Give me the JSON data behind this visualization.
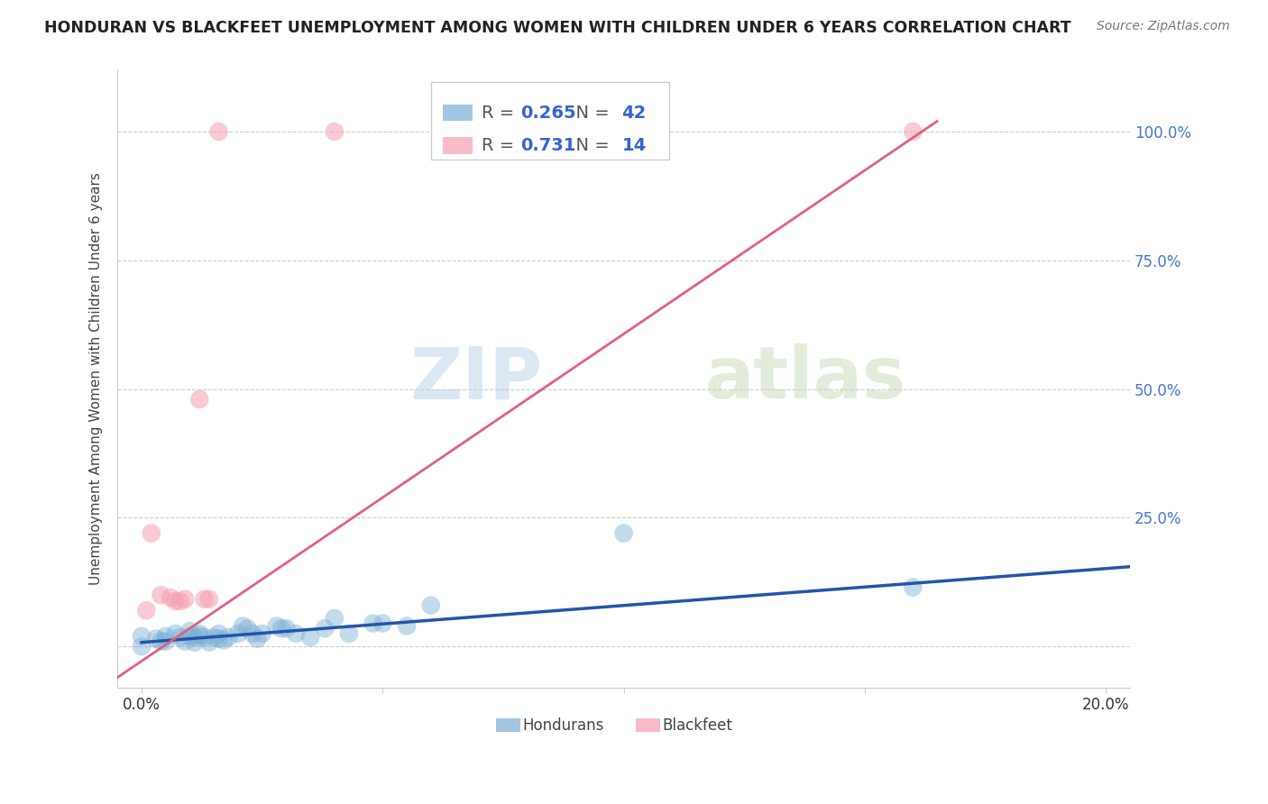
{
  "title": "HONDURAN VS BLACKFEET UNEMPLOYMENT AMONG WOMEN WITH CHILDREN UNDER 6 YEARS CORRELATION CHART",
  "source": "Source: ZipAtlas.com",
  "ylabel": "Unemployment Among Women with Children Under 6 years",
  "x_ticks": [
    0.0,
    0.05,
    0.1,
    0.15,
    0.2
  ],
  "x_tick_labels": [
    "0.0%",
    "",
    "",
    "",
    "20.0%"
  ],
  "y_ticks": [
    0.0,
    0.25,
    0.5,
    0.75,
    1.0
  ],
  "y_tick_labels_right": [
    "",
    "25.0%",
    "50.0%",
    "75.0%",
    "100.0%"
  ],
  "xlim": [
    -0.005,
    0.205
  ],
  "ylim": [
    -0.08,
    1.12
  ],
  "honduran_color": "#7BAFD4",
  "blackfeet_color": "#F4A0B0",
  "honduran_line_color": "#2255AA",
  "blackfeet_line_color": "#E06080",
  "honduran_R": 0.265,
  "honduran_N": 42,
  "blackfeet_R": 0.731,
  "blackfeet_N": 14,
  "legend_hondurans": "Hondurans",
  "legend_blackfeet": "Blackfeet",
  "watermark_zip": "ZIP",
  "watermark_atlas": "atlas",
  "background_color": "#ffffff",
  "honduran_scatter": [
    [
      0.0,
      0.02
    ],
    [
      0.0,
      0.0
    ],
    [
      0.003,
      0.015
    ],
    [
      0.004,
      0.01
    ],
    [
      0.005,
      0.02
    ],
    [
      0.005,
      0.01
    ],
    [
      0.007,
      0.025
    ],
    [
      0.008,
      0.018
    ],
    [
      0.009,
      0.01
    ],
    [
      0.01,
      0.02
    ],
    [
      0.01,
      0.03
    ],
    [
      0.011,
      0.018
    ],
    [
      0.011,
      0.008
    ],
    [
      0.012,
      0.02
    ],
    [
      0.012,
      0.025
    ],
    [
      0.013,
      0.018
    ],
    [
      0.014,
      0.008
    ],
    [
      0.015,
      0.018
    ],
    [
      0.016,
      0.025
    ],
    [
      0.016,
      0.015
    ],
    [
      0.017,
      0.012
    ],
    [
      0.018,
      0.018
    ],
    [
      0.02,
      0.025
    ],
    [
      0.021,
      0.04
    ],
    [
      0.022,
      0.035
    ],
    [
      0.023,
      0.025
    ],
    [
      0.024,
      0.015
    ],
    [
      0.025,
      0.025
    ],
    [
      0.028,
      0.04
    ],
    [
      0.029,
      0.035
    ],
    [
      0.03,
      0.035
    ],
    [
      0.032,
      0.025
    ],
    [
      0.035,
      0.018
    ],
    [
      0.038,
      0.035
    ],
    [
      0.04,
      0.055
    ],
    [
      0.043,
      0.025
    ],
    [
      0.048,
      0.045
    ],
    [
      0.05,
      0.045
    ],
    [
      0.055,
      0.04
    ],
    [
      0.06,
      0.08
    ],
    [
      0.1,
      0.22
    ],
    [
      0.16,
      0.115
    ]
  ],
  "blackfeet_scatter": [
    [
      0.001,
      0.07
    ],
    [
      0.002,
      0.22
    ],
    [
      0.004,
      0.1
    ],
    [
      0.006,
      0.095
    ],
    [
      0.007,
      0.088
    ],
    [
      0.008,
      0.088
    ],
    [
      0.009,
      0.092
    ],
    [
      0.012,
      0.48
    ],
    [
      0.013,
      0.092
    ],
    [
      0.014,
      0.092
    ],
    [
      0.016,
      1.0
    ],
    [
      0.04,
      1.0
    ],
    [
      0.08,
      1.0
    ],
    [
      0.16,
      1.0
    ]
  ],
  "honduran_line": [
    [
      0.0,
      0.008
    ],
    [
      0.205,
      0.155
    ]
  ],
  "blackfeet_line": [
    [
      -0.005,
      -0.06
    ],
    [
      0.165,
      1.02
    ]
  ]
}
